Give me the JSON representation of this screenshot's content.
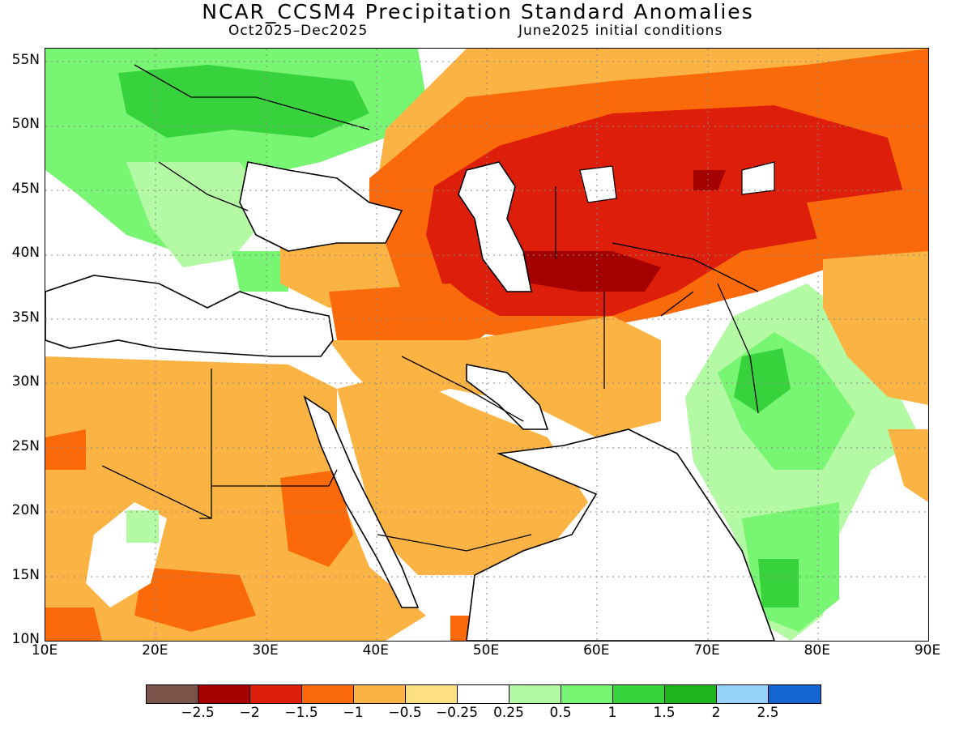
{
  "title": "NCAR_CCSM4 Precipitation Standard Anomalies",
  "subtitle_left": "Oct2025–Dec2025",
  "subtitle_right": "June2025 initial conditions",
  "map": {
    "lat_labels": [
      "55N",
      "50N",
      "45N",
      "40N",
      "35N",
      "30N",
      "25N",
      "20N",
      "15N",
      "10N"
    ],
    "lon_labels": [
      "10E",
      "20E",
      "30E",
      "40E",
      "50E",
      "60E",
      "70E",
      "80E",
      "90E"
    ],
    "lat_range": [
      10,
      56
    ],
    "lon_range": [
      10,
      90
    ],
    "grid": "dotted"
  },
  "legend": {
    "colors": [
      "#7b5449",
      "#a50000",
      "#dc1e0a",
      "#fa6a0a",
      "#fbb444",
      "#ffe081",
      "#ffffff",
      "#b4f9a3",
      "#78f572",
      "#37d23c",
      "#1eb41e",
      "#96d2fa",
      "#1464d2"
    ],
    "labels": [
      "−2.5",
      "−2",
      "−1.5",
      "−1",
      "−0.5",
      "−0.25",
      "0.25",
      "0.5",
      "1",
      "1.5",
      "2",
      "2.5"
    ]
  },
  "colors": {
    "ocean": "#ffffff",
    "coast": "#000000"
  }
}
